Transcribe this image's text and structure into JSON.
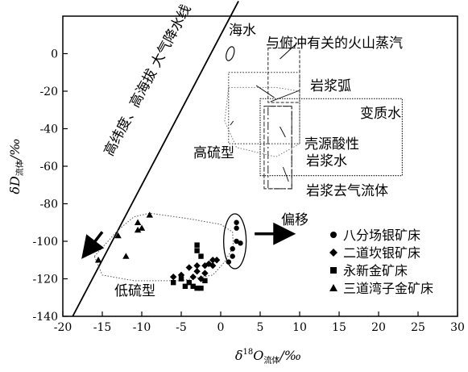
{
  "chart_data": {
    "type": "scatter",
    "xlabel": "δ18O流体/‰",
    "ylabel": "δD流体/‰",
    "xlabel_parts": {
      "delta": "δ",
      "sup": "18",
      "base": "O",
      "sub": "流体",
      "unit": "/‰"
    },
    "ylabel_parts": {
      "delta": "δ",
      "base": "D",
      "sub": "流体",
      "unit": "/‰"
    },
    "xlim": [
      -20,
      30
    ],
    "ylim": [
      -140,
      20
    ],
    "xticks": [
      -20,
      -15,
      -10,
      -5,
      0,
      5,
      10,
      15,
      20,
      25,
      30
    ],
    "yticks": [
      -140,
      -120,
      -100,
      -80,
      -60,
      -40,
      -20,
      0
    ],
    "meteoric_water_line": {
      "label": "高纬度、高海拔 大气降水线",
      "points": [
        [
          -18.75,
          -140
        ],
        [
          2.25,
          28
        ]
      ]
    },
    "regions": {
      "volcanic_vapor": {
        "label": "与俯冲有关的火山蒸汽",
        "x": [
          6,
          10
        ],
        "y": [
          -26,
          3
        ]
      },
      "arc_magma": {
        "label": "岩浆弧",
        "x": [
          1,
          10
        ],
        "y": [
          -48,
          -10
        ]
      },
      "metamorphic_water": {
        "label": "变质水",
        "x": [
          5,
          23
        ],
        "y": [
          -65,
          -24
        ]
      },
      "felsic_magma_water": {
        "label": "壳源酸性 岩浆水",
        "x": [
          6,
          9
        ],
        "y": [
          -72,
          -28
        ]
      },
      "degassed_magma": {
        "label": "岩浆去气流体",
        "x": [
          5.5,
          9
        ],
        "y": [
          -72,
          -28
        ]
      },
      "high_sulfidation": {
        "label": "高硫型"
      },
      "low_sulfidation": {
        "label": "低硫型"
      },
      "seawater": {
        "label": "海水",
        "x": 1.2,
        "y": 0
      }
    },
    "shift_label": "偏移",
    "series": [
      {
        "name": "八分场银矿床",
        "marker": "circle",
        "points": [
          [
            2,
            -90
          ],
          [
            2,
            -93
          ],
          [
            2,
            -100
          ],
          [
            2.5,
            -101
          ],
          [
            1.5,
            -104
          ],
          [
            1.5,
            -108
          ],
          [
            1,
            -111
          ]
        ]
      },
      {
        "name": "二道坎银矿床",
        "marker": "diamond",
        "points": [
          [
            -6,
            -119
          ],
          [
            -3,
            -113
          ],
          [
            -2,
            -113
          ],
          [
            -1.5,
            -112
          ],
          [
            -1,
            -110
          ],
          [
            -3,
            -116
          ],
          [
            -5,
            -118
          ],
          [
            -2.5,
            -120
          ],
          [
            -4,
            -114
          ],
          [
            -0.5,
            -110
          ],
          [
            -2,
            -117
          ],
          [
            -3.5,
            -119
          ],
          [
            -1,
            -113
          ]
        ]
      },
      {
        "name": "永新金矿床",
        "marker": "square",
        "points": [
          [
            -3,
            -102
          ],
          [
            -3,
            -105
          ],
          [
            -2.5,
            -108
          ],
          [
            -4,
            -122
          ],
          [
            -3.5,
            -124
          ],
          [
            -3,
            -125
          ],
          [
            -2.5,
            -125
          ],
          [
            -5,
            -120
          ],
          [
            -4.5,
            -124
          ],
          [
            -2,
            -121
          ],
          [
            -6,
            -122
          ]
        ]
      },
      {
        "name": "三道湾子金矿床",
        "marker": "triangle",
        "points": [
          [
            -15.5,
            -110
          ],
          [
            -13,
            -97
          ],
          [
            -10.5,
            -90
          ],
          [
            -10,
            -93
          ],
          [
            -10.5,
            -94
          ],
          [
            -9,
            -86
          ],
          [
            -12,
            -108
          ]
        ]
      }
    ]
  }
}
